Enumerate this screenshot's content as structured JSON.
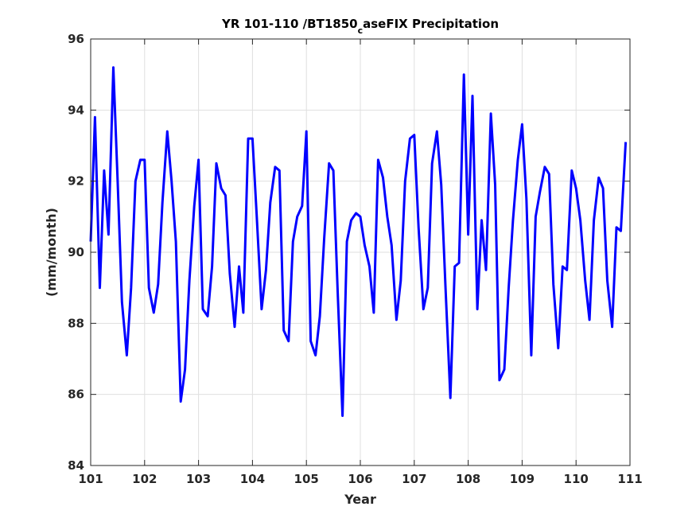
{
  "chart_data": {
    "type": "line",
    "title": {
      "main": "YR 101-110 /BT1850",
      "subscript": "c",
      "rest": "aseFIX Precipitation"
    },
    "xlabel": "Year",
    "ylabel": "(mm/month)",
    "xlim": [
      101,
      111
    ],
    "ylim": [
      84,
      96
    ],
    "xticks": [
      101,
      102,
      103,
      104,
      105,
      106,
      107,
      108,
      109,
      110,
      111
    ],
    "yticks": [
      84,
      86,
      88,
      90,
      92,
      94,
      96
    ],
    "grid": true,
    "line_color": "#0000ff",
    "series": [
      {
        "x": [
          101.0,
          101.08,
          101.17,
          101.25,
          101.33,
          101.42,
          101.5,
          101.58,
          101.67,
          101.75,
          101.83,
          101.92,
          102.0,
          102.08,
          102.17,
          102.25,
          102.33,
          102.42,
          102.5,
          102.58,
          102.67,
          102.75,
          102.83,
          102.92,
          103.0,
          103.08,
          103.17,
          103.25,
          103.33,
          103.42,
          103.5,
          103.58,
          103.67,
          103.75,
          103.83,
          103.92,
          104.0,
          104.08,
          104.17,
          104.25,
          104.33,
          104.42,
          104.5,
          104.58,
          104.67,
          104.75,
          104.83,
          104.92,
          105.0,
          105.08,
          105.17,
          105.25,
          105.33,
          105.42,
          105.5,
          105.58,
          105.67,
          105.75,
          105.83,
          105.92,
          106.0,
          106.08,
          106.17,
          106.25,
          106.33,
          106.42,
          106.5,
          106.58,
          106.67,
          106.75,
          106.83,
          106.92,
          107.0,
          107.08,
          107.17,
          107.25,
          107.33,
          107.42,
          107.5,
          107.58,
          107.67,
          107.75,
          107.83,
          107.92,
          108.0,
          108.08,
          108.17,
          108.25,
          108.33,
          108.42,
          108.5,
          108.58,
          108.67,
          108.75,
          108.83,
          108.92,
          109.0,
          109.08,
          109.17,
          109.25,
          109.33,
          109.42,
          109.5,
          109.58,
          109.67,
          109.75,
          109.83,
          109.92,
          110.0,
          110.08,
          110.17,
          110.25,
          110.33,
          110.42,
          110.5,
          110.58,
          110.67,
          110.75,
          110.83,
          110.92
        ],
        "y": [
          90.3,
          93.8,
          89.0,
          92.3,
          90.5,
          95.2,
          92.0,
          88.6,
          87.1,
          89.0,
          92.0,
          92.6,
          92.6,
          89.0,
          88.3,
          89.1,
          91.4,
          93.4,
          92.0,
          90.3,
          85.8,
          86.7,
          89.2,
          91.3,
          92.6,
          88.4,
          88.2,
          89.6,
          92.5,
          91.8,
          91.6,
          89.4,
          87.9,
          89.6,
          88.3,
          93.2,
          93.2,
          91.0,
          88.4,
          89.5,
          91.4,
          92.4,
          92.3,
          87.8,
          87.5,
          90.3,
          91.0,
          91.3,
          93.4,
          87.5,
          87.1,
          88.2,
          90.4,
          92.5,
          92.3,
          88.9,
          85.4,
          90.3,
          90.9,
          91.1,
          91.0,
          90.2,
          89.6,
          88.3,
          92.6,
          92.1,
          91.0,
          90.2,
          88.1,
          89.2,
          92.0,
          93.2,
          93.3,
          90.7,
          88.4,
          89.0,
          92.5,
          93.4,
          91.9,
          89.0,
          85.9,
          89.6,
          89.7,
          95.0,
          90.5,
          94.4,
          88.4,
          90.9,
          89.5,
          93.9,
          91.9,
          86.4,
          86.7,
          89.0,
          90.9,
          92.6,
          93.6,
          91.5,
          87.1,
          91.0,
          91.7,
          92.4,
          92.2,
          89.1,
          87.3,
          89.6,
          89.5,
          92.3,
          91.8,
          90.9,
          89.2,
          88.1,
          90.9,
          92.1,
          91.8,
          89.2,
          87.9,
          90.7,
          90.6,
          93.1
        ]
      }
    ]
  }
}
